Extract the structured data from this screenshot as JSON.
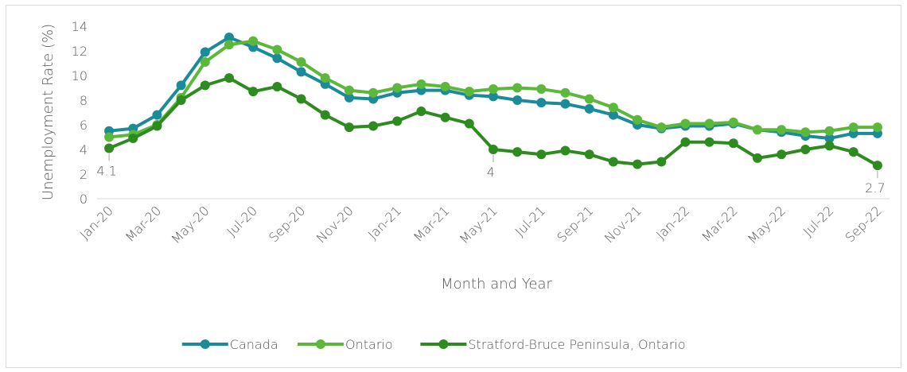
{
  "chart_data": {
    "type": "line",
    "y_label": "Unemployment Rate (%)",
    "x_label": "Month and Year",
    "categories": [
      "Jan-20",
      null,
      "Mar-20",
      null,
      "May-20",
      null,
      "Jul-20",
      null,
      "Sep-20",
      null,
      "Nov-20",
      null,
      "Jan-21",
      null,
      "Mar-21",
      null,
      "May-21",
      null,
      "Jul-21",
      null,
      "Sep-21",
      null,
      "Nov-21",
      null,
      "Jan-22",
      null,
      "Mar-22",
      null,
      "May-22",
      null,
      "Jul-22",
      null,
      "Sep-22"
    ],
    "series": [
      {
        "name": "Canada",
        "color": "#1b8a99",
        "values": [
          5.5,
          5.7,
          6.8,
          9.2,
          11.9,
          13.1,
          12.3,
          11.4,
          10.3,
          9.3,
          8.2,
          8.1,
          8.6,
          8.8,
          8.8,
          8.4,
          8.3,
          8.0,
          7.8,
          7.7,
          7.3,
          6.8,
          6.0,
          5.7,
          5.9,
          5.9,
          6.1,
          5.6,
          5.4,
          5.1,
          4.9,
          5.3,
          5.3
        ]
      },
      {
        "name": "Ontario",
        "color": "#5cb83a",
        "values": [
          5.0,
          5.2,
          6.0,
          8.2,
          11.1,
          12.5,
          12.8,
          12.1,
          11.1,
          9.8,
          8.8,
          8.6,
          9.0,
          9.3,
          9.1,
          8.7,
          8.9,
          9.0,
          8.9,
          8.6,
          8.1,
          7.4,
          6.4,
          5.8,
          6.1,
          6.1,
          6.2,
          5.6,
          5.6,
          5.4,
          5.5,
          5.8,
          5.8
        ]
      },
      {
        "name": "Stratford-Bruce Peninsula, Ontario",
        "color": "#2e8b1f",
        "values": [
          4.1,
          4.9,
          5.9,
          8.0,
          9.2,
          9.8,
          8.7,
          9.1,
          8.1,
          6.8,
          5.8,
          5.9,
          6.3,
          7.1,
          6.6,
          6.1,
          4.0,
          3.8,
          3.6,
          3.9,
          3.6,
          3.0,
          2.8,
          3.0,
          4.6,
          4.6,
          4.5,
          3.3,
          3.6,
          4.0,
          4.3,
          3.8,
          2.7
        ],
        "value_labels": [
          "4.1",
          null,
          null,
          null,
          null,
          null,
          null,
          null,
          null,
          null,
          null,
          null,
          null,
          null,
          null,
          null,
          "4",
          null,
          null,
          null,
          null,
          null,
          null,
          null,
          null,
          null,
          null,
          null,
          null,
          null,
          null,
          null,
          "2.7"
        ]
      }
    ],
    "ylim": [
      0,
      14
    ],
    "yticks": [
      0,
      2,
      4,
      6,
      8,
      10,
      12,
      14
    ],
    "grid": false,
    "legend": "bottom"
  }
}
